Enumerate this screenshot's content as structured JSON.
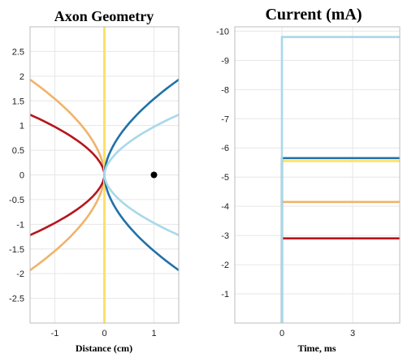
{
  "chart_data": [
    {
      "type": "line",
      "title": "Axon Geometry",
      "xlabel": "Distance (cm)",
      "ylabel": "",
      "xlim": [
        -1.5,
        1.5
      ],
      "ylim": [
        -3,
        3
      ],
      "xticks": [
        "-1",
        "0",
        "1"
      ],
      "xtick_values": [
        -1,
        0,
        1
      ],
      "yticks": [
        "-2.5",
        "-2",
        "-1.5",
        "-1",
        "-0.5",
        "0",
        "0.5",
        "1",
        "1.5",
        "2",
        "2.5"
      ],
      "ytick_values": [
        -2.5,
        -2,
        -1.5,
        -1,
        -0.5,
        0,
        0.5,
        1,
        1.5,
        2,
        2.5
      ],
      "grid": true,
      "series": [
        {
          "color": "#f0b36a",
          "shape": "curve",
          "x_at_ends": -1.5,
          "y_at_ends": 1.93
        },
        {
          "color": "#b5161c",
          "shape": "curve",
          "x_at_ends": -1.5,
          "y_at_ends": 1.22
        },
        {
          "color": "#ffe066",
          "shape": "vertical",
          "x": 0,
          "y": [
            -3,
            3
          ]
        },
        {
          "color": "#2171a8",
          "shape": "curve",
          "x_at_ends": 1.5,
          "y_at_ends": 1.93
        },
        {
          "color": "#a8d8ea",
          "shape": "curve",
          "x_at_ends": 1.5,
          "y_at_ends": 1.22
        }
      ],
      "points": [
        {
          "x": 1,
          "y": 0,
          "color": "#000000"
        }
      ]
    },
    {
      "type": "line",
      "title": "Current (mA)",
      "xlabel": "Time, ms",
      "ylabel": "",
      "xlim": [
        -2,
        5
      ],
      "ylim": [
        0,
        -10
      ],
      "y_reversed": true,
      "xticks": [
        "0",
        "3"
      ],
      "xtick_values": [
        0,
        3
      ],
      "yticks": [
        "-10",
        "-9",
        "-8",
        "-7",
        "-6",
        "-5",
        "-4",
        "-3",
        "-2",
        "-1"
      ],
      "ytick_values": [
        -10,
        -9,
        -8,
        -7,
        -6,
        -5,
        -4,
        -3,
        -2,
        -1
      ],
      "grid": true,
      "step_time": 0,
      "series": [
        {
          "color": "#a8d8ea",
          "value": -9.8
        },
        {
          "color": "#2171a8",
          "value": -5.65
        },
        {
          "color": "#ffe066",
          "value": -5.55
        },
        {
          "color": "#f0b36a",
          "value": -4.15
        },
        {
          "color": "#b5161c",
          "value": -2.9
        }
      ]
    }
  ]
}
